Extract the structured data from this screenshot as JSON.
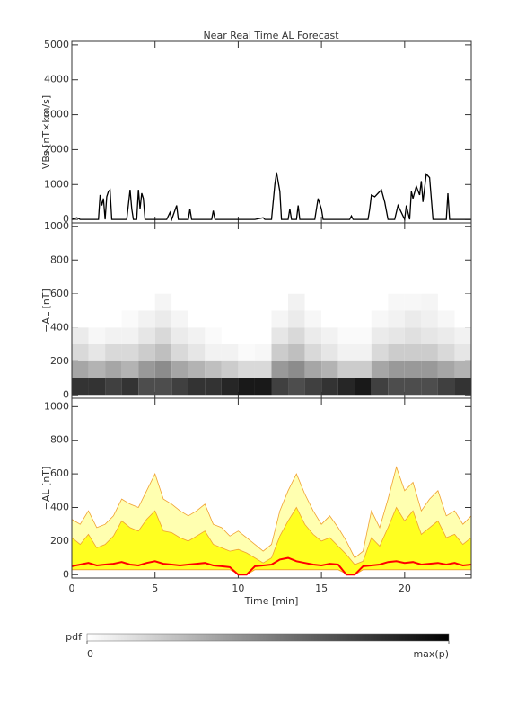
{
  "chart_data": [
    {
      "type": "line",
      "title": "Near Real Time AL Forecast",
      "ylabel": "VBs [nT×km/s]",
      "color": "#000000",
      "xlim": [
        0,
        24
      ],
      "xticks": [
        0,
        5,
        10,
        15,
        20
      ],
      "ylim": [
        -100,
        5100
      ],
      "yticks": [
        0,
        1000,
        2000,
        3000,
        4000,
        5000
      ],
      "x": [
        0,
        0.3,
        0.5,
        1.0,
        1.6,
        1.7,
        1.8,
        1.9,
        2.0,
        2.1,
        2.2,
        2.3,
        2.4,
        3.3,
        3.5,
        3.6,
        3.7,
        3.9,
        4.0,
        4.1,
        4.2,
        4.3,
        4.4,
        5.7,
        5.9,
        6.0,
        6.3,
        6.4,
        7.0,
        7.1,
        7.2,
        8.4,
        8.5,
        8.6,
        11.0,
        11.5,
        11.6,
        12.0,
        12.2,
        12.3,
        12.5,
        12.6,
        13.0,
        13.1,
        13.2,
        13.5,
        13.6,
        13.7,
        14.6,
        14.8,
        15.0,
        15.1,
        16.7,
        16.8,
        16.9,
        17.8,
        17.9,
        18.0,
        18.2,
        18.4,
        18.6,
        18.8,
        19.0,
        19.4,
        19.6,
        19.8,
        20.0,
        20.1,
        20.3,
        20.4,
        20.5,
        20.7,
        20.9,
        21.0,
        21.1,
        21.3,
        21.5,
        21.7,
        22.5,
        22.6,
        22.7,
        24
      ],
      "values": [
        0,
        50,
        0,
        0,
        0,
        700,
        400,
        600,
        0,
        650,
        800,
        850,
        0,
        0,
        850,
        300,
        0,
        0,
        850,
        300,
        750,
        600,
        0,
        0,
        200,
        0,
        400,
        0,
        0,
        300,
        0,
        0,
        250,
        0,
        0,
        50,
        0,
        0,
        1000,
        1350,
        800,
        0,
        0,
        300,
        0,
        0,
        400,
        0,
        0,
        600,
        300,
        0,
        0,
        100,
        0,
        0,
        300,
        700,
        650,
        750,
        850,
        500,
        0,
        0,
        400,
        200,
        0,
        400,
        0,
        800,
        600,
        950,
        700,
        1100,
        500,
        1300,
        1200,
        0,
        0,
        750,
        0,
        0
      ]
    },
    {
      "type": "heatmap",
      "ylabel": "−AL [nT]",
      "xlim": [
        0,
        24
      ],
      "xticks": [
        0,
        5,
        10,
        15,
        20
      ],
      "ylim": [
        -20,
        1020
      ],
      "yticks": [
        0,
        200,
        400,
        600,
        800,
        1000
      ],
      "zlim": [
        0,
        1
      ],
      "xbins": [
        0,
        1,
        2,
        3,
        4,
        5,
        6,
        7,
        8,
        9,
        10,
        11,
        12,
        13,
        14,
        15,
        16,
        17,
        18,
        19,
        20,
        21,
        22,
        23,
        24
      ],
      "ybins": [
        0,
        100,
        200,
        300,
        400,
        500,
        600
      ],
      "z": [
        [
          0.8,
          0.8,
          0.75,
          0.8,
          0.7,
          0.7,
          0.75,
          0.8,
          0.8,
          0.85,
          0.9,
          0.9,
          0.75,
          0.7,
          0.75,
          0.8,
          0.85,
          0.9,
          0.75,
          0.7,
          0.7,
          0.7,
          0.75,
          0.8
        ],
        [
          0.35,
          0.3,
          0.35,
          0.3,
          0.4,
          0.45,
          0.35,
          0.3,
          0.25,
          0.2,
          0.15,
          0.15,
          0.4,
          0.45,
          0.35,
          0.3,
          0.2,
          0.2,
          0.35,
          0.4,
          0.4,
          0.4,
          0.35,
          0.3
        ],
        [
          0.15,
          0.1,
          0.15,
          0.15,
          0.2,
          0.25,
          0.15,
          0.1,
          0.05,
          0.05,
          0.02,
          0.03,
          0.2,
          0.25,
          0.15,
          0.1,
          0.05,
          0.05,
          0.15,
          0.2,
          0.2,
          0.2,
          0.15,
          0.1
        ],
        [
          0.08,
          0.03,
          0.05,
          0.05,
          0.1,
          0.15,
          0.08,
          0.05,
          0.02,
          0,
          0,
          0,
          0.1,
          0.15,
          0.08,
          0.05,
          0.02,
          0.02,
          0.08,
          0.1,
          0.12,
          0.1,
          0.08,
          0.05
        ],
        [
          0,
          0,
          0,
          0.02,
          0.05,
          0.08,
          0.04,
          0,
          0,
          0,
          0,
          0,
          0.04,
          0.08,
          0.03,
          0,
          0,
          0,
          0.03,
          0.05,
          0.08,
          0.06,
          0.03,
          0
        ],
        [
          0,
          0,
          0,
          0,
          0,
          0.04,
          0,
          0,
          0,
          0,
          0,
          0,
          0,
          0.05,
          0,
          0,
          0,
          0,
          0,
          0.03,
          0.03,
          0.04,
          0,
          0
        ]
      ]
    },
    {
      "type": "band",
      "ylabel": "−AL [nT]",
      "xlabel": "Time [min]",
      "xlim": [
        0,
        24
      ],
      "xticks": [
        0,
        5,
        10,
        15,
        20
      ],
      "ylim": [
        -20,
        1050
      ],
      "yticks": [
        0,
        200,
        400,
        600,
        800,
        1000
      ],
      "edgecolor": "#f0a030",
      "x": [
        0,
        0.5,
        1,
        1.5,
        2,
        2.5,
        3,
        3.5,
        4,
        4.5,
        5,
        5.5,
        6,
        6.5,
        7,
        7.5,
        8,
        8.5,
        9,
        9.5,
        10,
        10.5,
        11,
        11.5,
        12,
        12.5,
        13,
        13.5,
        14,
        14.5,
        15,
        15.5,
        16,
        16.5,
        17,
        17.5,
        18,
        18.5,
        19,
        19.5,
        20,
        20.5,
        21,
        21.5,
        22,
        22.5,
        23,
        23.5,
        24
      ],
      "lower": [
        30,
        30,
        30,
        30,
        30,
        30,
        30,
        30,
        30,
        30,
        30,
        30,
        30,
        30,
        30,
        30,
        30,
        30,
        30,
        30,
        5,
        0,
        30,
        30,
        30,
        30,
        30,
        30,
        30,
        30,
        30,
        30,
        30,
        5,
        0,
        30,
        30,
        30,
        30,
        30,
        30,
        30,
        30,
        30,
        30,
        30,
        30,
        30,
        30
      ],
      "series": [
        {
          "color": "#ffffb0",
          "values": [
            330,
            300,
            380,
            280,
            300,
            350,
            450,
            420,
            400,
            500,
            600,
            450,
            420,
            380,
            350,
            380,
            420,
            300,
            280,
            230,
            260,
            220,
            180,
            140,
            180,
            380,
            500,
            600,
            480,
            380,
            300,
            350,
            280,
            200,
            100,
            140,
            380,
            280,
            450,
            640,
            500,
            550,
            380,
            450,
            500,
            350,
            380,
            300,
            350
          ]
        },
        {
          "color": "#ffff20",
          "values": [
            220,
            180,
            240,
            160,
            180,
            230,
            320,
            280,
            260,
            330,
            380,
            260,
            250,
            220,
            200,
            230,
            260,
            180,
            160,
            140,
            150,
            130,
            100,
            70,
            100,
            230,
            320,
            400,
            300,
            240,
            200,
            220,
            170,
            120,
            60,
            80,
            220,
            170,
            280,
            400,
            320,
            380,
            240,
            280,
            320,
            220,
            240,
            180,
            220
          ]
        },
        {
          "color": "#ff0000",
          "values": [
            50,
            60,
            70,
            55,
            60,
            65,
            75,
            60,
            55,
            70,
            80,
            65,
            60,
            55,
            60,
            65,
            70,
            55,
            50,
            45,
            0,
            0,
            50,
            55,
            60,
            90,
            100,
            80,
            70,
            60,
            55,
            65,
            60,
            0,
            0,
            50,
            55,
            60,
            75,
            80,
            70,
            75,
            60,
            65,
            70,
            60,
            70,
            55,
            60
          ]
        }
      ]
    },
    {
      "type": "colorbar",
      "label": "pdf",
      "zlim": [
        0,
        1
      ],
      "ticks": [
        0,
        {
          "value": 1,
          "label": "max(p)"
        }
      ]
    }
  ]
}
